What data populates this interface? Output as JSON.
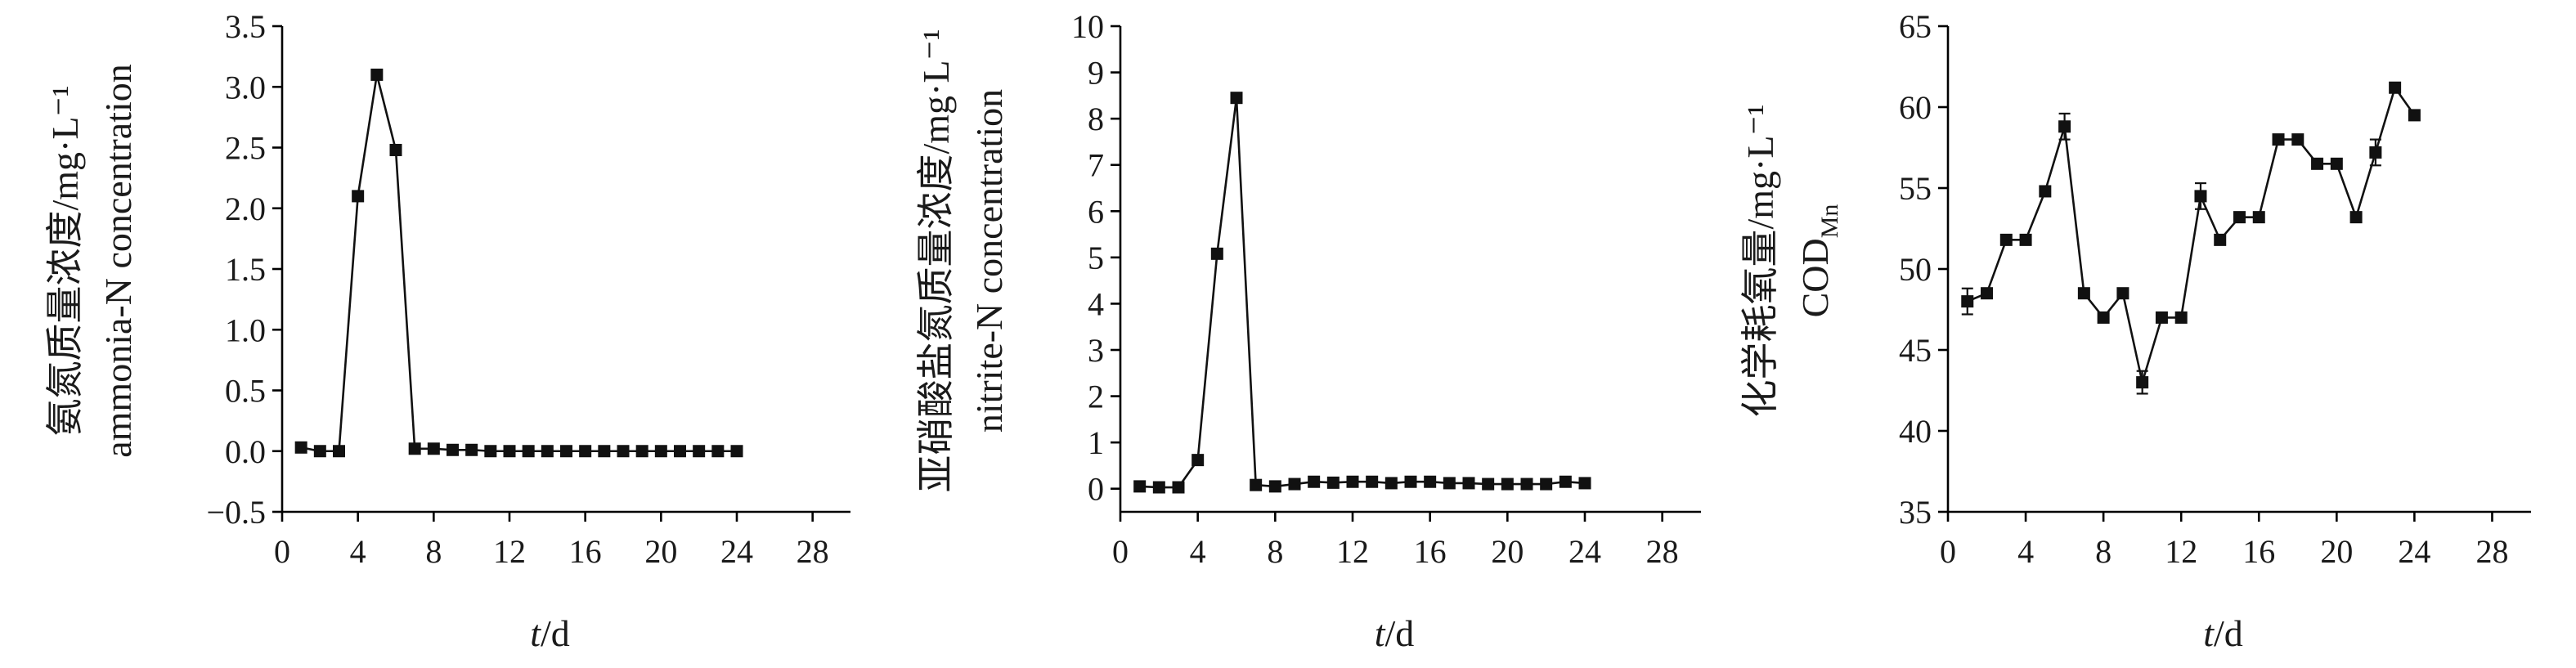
{
  "chart_data": [
    {
      "type": "line",
      "ylabel_cn": "氨氮质量浓度/mg·L⁻¹",
      "ylabel_en": "ammonia-N concentration",
      "xlabel_var": "t",
      "xlabel_unit": "/d",
      "xlim": [
        0,
        30
      ],
      "ylim": [
        -0.5,
        3.5
      ],
      "xticks": [
        0,
        4,
        8,
        12,
        16,
        20,
        24,
        28
      ],
      "yticks": [
        -0.5,
        0.0,
        0.5,
        1.0,
        1.5,
        2.0,
        2.5,
        3.0,
        3.5
      ],
      "ytick_labels": [
        "−0.5",
        "0.0",
        "0.5",
        "1.0",
        "1.5",
        "2.0",
        "2.5",
        "3.0",
        "3.5"
      ],
      "series": [
        {
          "x": [
            1,
            2,
            3,
            4,
            5,
            6,
            7,
            8,
            9,
            10,
            11,
            12,
            13,
            14,
            15,
            16,
            17,
            18,
            19,
            20,
            21,
            22,
            23,
            24
          ],
          "y": [
            0.03,
            0.0,
            0.0,
            2.1,
            3.1,
            2.48,
            0.02,
            0.02,
            0.01,
            0.01,
            0.0,
            0.0,
            0.0,
            0.0,
            0.0,
            0.0,
            0.0,
            0.0,
            0.0,
            0.0,
            0.0,
            0.0,
            0.0,
            0.0
          ]
        }
      ]
    },
    {
      "type": "line",
      "ylabel_cn": "亚硝酸盐氮质量浓度/mg·L⁻¹",
      "ylabel_en": "nitrite-N concentration",
      "xlabel_var": "t",
      "xlabel_unit": "/d",
      "xlim": [
        0,
        30
      ],
      "ylim": [
        -0.5,
        10
      ],
      "xticks": [
        0,
        4,
        8,
        12,
        16,
        20,
        24,
        28
      ],
      "yticks": [
        0,
        1,
        2,
        3,
        4,
        5,
        6,
        7,
        8,
        9,
        10
      ],
      "ytick_labels": [
        "0",
        "1",
        "2",
        "3",
        "4",
        "5",
        "6",
        "7",
        "8",
        "9",
        "10"
      ],
      "series": [
        {
          "x": [
            1,
            2,
            3,
            4,
            5,
            6,
            7,
            8,
            9,
            10,
            11,
            12,
            13,
            14,
            15,
            16,
            17,
            18,
            19,
            20,
            21,
            22,
            23,
            24
          ],
          "y": [
            0.05,
            0.03,
            0.03,
            0.62,
            5.08,
            8.45,
            0.08,
            0.05,
            0.1,
            0.15,
            0.13,
            0.15,
            0.15,
            0.12,
            0.15,
            0.15,
            0.12,
            0.12,
            0.1,
            0.1,
            0.1,
            0.1,
            0.15,
            0.12
          ]
        }
      ]
    },
    {
      "type": "line",
      "ylabel_cn": "化学耗氧量/mg·L⁻¹",
      "ylabel_en_main": "COD",
      "ylabel_en_sub": "Mn",
      "xlabel_var": "t",
      "xlabel_unit": "/d",
      "xlim": [
        0,
        30
      ],
      "ylim": [
        35,
        65
      ],
      "xticks": [
        0,
        4,
        8,
        12,
        16,
        20,
        24,
        28
      ],
      "yticks": [
        35,
        40,
        45,
        50,
        55,
        60,
        65
      ],
      "ytick_labels": [
        "35",
        "40",
        "45",
        "50",
        "55",
        "60",
        "65"
      ],
      "series": [
        {
          "x": [
            1,
            2,
            3,
            4,
            5,
            6,
            7,
            8,
            9,
            10,
            11,
            12,
            13,
            14,
            15,
            16,
            17,
            18,
            19,
            20,
            21,
            22,
            23,
            24
          ],
          "y": [
            48.0,
            48.5,
            51.8,
            51.8,
            54.8,
            58.8,
            48.5,
            47.0,
            48.5,
            43.0,
            47.0,
            47.0,
            54.5,
            51.8,
            53.2,
            53.2,
            58.0,
            58.0,
            56.5,
            56.5,
            53.2,
            57.2,
            61.2,
            59.5
          ],
          "err": [
            0.8,
            0,
            0,
            0,
            0,
            0.8,
            0,
            0,
            0,
            0.7,
            0,
            0,
            0.8,
            0,
            0,
            0,
            0,
            0,
            0,
            0,
            0,
            0.8,
            0,
            0
          ]
        }
      ]
    }
  ]
}
